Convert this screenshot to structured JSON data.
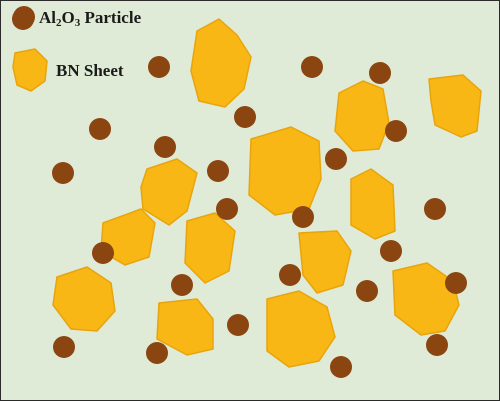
{
  "legend": {
    "particle": {
      "formula": {
        "el1": "Al",
        "sub1": "2",
        "el2": "O",
        "sub2": "3"
      },
      "word": " Particle"
    },
    "sheet": {
      "label": "BN Sheet"
    }
  },
  "colors": {
    "background": "#dfebd6",
    "particle": "#8b4510",
    "sheet": "#f9b716",
    "sheet_edge": "#e8a40b",
    "border": "#2b2b2b"
  }
}
